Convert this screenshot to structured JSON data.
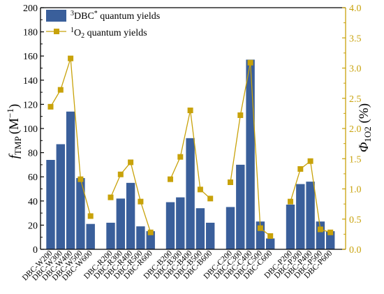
{
  "colors": {
    "bar": "#3a5f9b",
    "line": "#c8a20a",
    "marker_fill": "#c8a20a",
    "left_axis": "#000000",
    "right_axis": "#c8a20a"
  },
  "chart_data": {
    "type": "bar",
    "grid": false,
    "legend_position": "top-left",
    "left_axis": {
      "label": "f",
      "label_sub": "TMP",
      "label_unit": "(M",
      "label_unit_sup": "−1",
      "label_unit_close": ")",
      "ylim": [
        0,
        200
      ],
      "ticks": [
        "0",
        "20",
        "40",
        "60",
        "80",
        "100",
        "120",
        "140",
        "160",
        "180",
        "200"
      ]
    },
    "right_axis": {
      "label": "Φ",
      "label_sub": "1O2",
      "label_unit": " (%)",
      "ylim": [
        0.0,
        4.0
      ],
      "ticks": [
        "0.0",
        "0.5",
        "1.0",
        "1.5",
        "2.0",
        "2.5",
        "3.0",
        "3.5",
        "4.0"
      ]
    },
    "legend": {
      "bar_sup": "3",
      "bar_label": "DBC",
      "bar_label_sup": "*",
      "bar_label_rest": " quantum yields",
      "line_sup": "1",
      "line_label": "O",
      "line_label_sub": "2",
      "line_label_rest": " quantum yields"
    },
    "groups": [
      {
        "categories": [
          "DBC-W200",
          "DBC-W300",
          "DBC-W400",
          "DBC-W500",
          "DBC-W600"
        ],
        "bar_values": [
          74,
          87,
          114,
          59,
          21
        ],
        "line_values": [
          2.36,
          2.64,
          3.16,
          1.16,
          0.55
        ]
      },
      {
        "categories": [
          "DBC-R200",
          "DBC-R300",
          "DBC-R400",
          "DBC-R500",
          "DBC-R600"
        ],
        "bar_values": [
          22,
          42,
          55,
          19,
          15
        ],
        "line_values": [
          0.86,
          1.24,
          1.44,
          0.79,
          0.28
        ]
      },
      {
        "categories": [
          "DBC-B200",
          "DBC-B300",
          "DBC-B400",
          "DBC-B500",
          "DBC-B600"
        ],
        "bar_values": [
          39,
          43,
          92,
          34,
          22
        ],
        "line_values": [
          1.16,
          1.53,
          2.3,
          0.99,
          0.84
        ]
      },
      {
        "categories": [
          "DBC-C200",
          "DBC-C300",
          "DBC-C400",
          "DBC-C500",
          "DBC-C600"
        ],
        "bar_values": [
          35,
          70,
          157,
          23,
          9
        ],
        "line_values": [
          1.11,
          2.22,
          3.09,
          0.35,
          0.22
        ]
      },
      {
        "categories": [
          "DBC-P200",
          "DBC-P300",
          "DBC-P400",
          "DBC-P500",
          "DBC-P600"
        ],
        "bar_values": [
          37,
          54,
          56,
          23,
          15
        ],
        "line_values": [
          0.79,
          1.33,
          1.46,
          0.33,
          0.28
        ]
      }
    ]
  }
}
